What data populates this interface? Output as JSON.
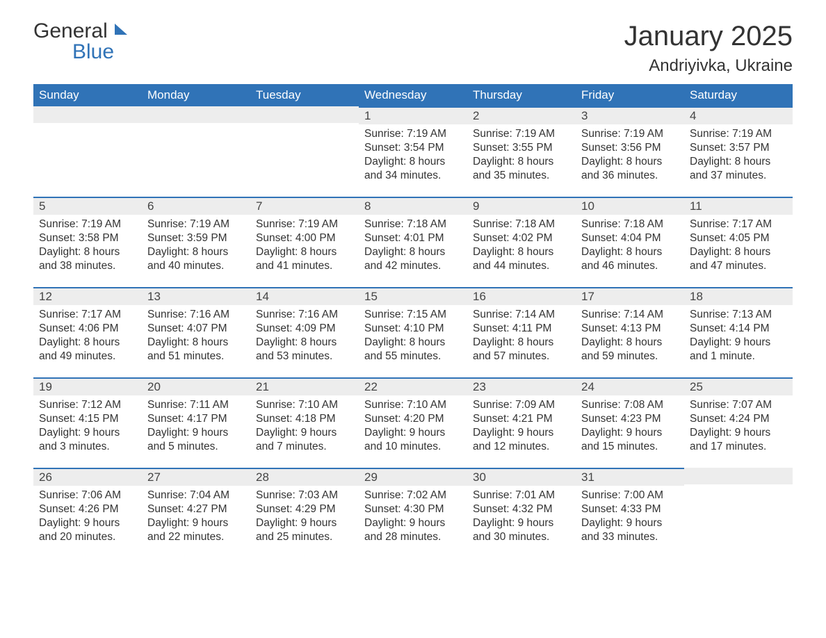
{
  "logo": {
    "word1": "General",
    "word2": "Blue",
    "mark_color": "#3073b7",
    "text_color": "#333333"
  },
  "header": {
    "title": "January 2025",
    "location": "Andriyivka, Ukraine"
  },
  "calendar": {
    "header_bg": "#3073b7",
    "header_fg": "#ffffff",
    "daynum_bg": "#ededed",
    "daynum_border": "#3073b7",
    "text_color": "#333333",
    "weekdays": [
      "Sunday",
      "Monday",
      "Tuesday",
      "Wednesday",
      "Thursday",
      "Friday",
      "Saturday"
    ],
    "labels": {
      "sunrise": "Sunrise:",
      "sunset": "Sunset:",
      "daylight": "Daylight:"
    },
    "weeks": [
      [
        null,
        null,
        null,
        {
          "n": "1",
          "sunrise": "7:19 AM",
          "sunset": "3:54 PM",
          "daylight": "8 hours and 34 minutes."
        },
        {
          "n": "2",
          "sunrise": "7:19 AM",
          "sunset": "3:55 PM",
          "daylight": "8 hours and 35 minutes."
        },
        {
          "n": "3",
          "sunrise": "7:19 AM",
          "sunset": "3:56 PM",
          "daylight": "8 hours and 36 minutes."
        },
        {
          "n": "4",
          "sunrise": "7:19 AM",
          "sunset": "3:57 PM",
          "daylight": "8 hours and 37 minutes."
        }
      ],
      [
        {
          "n": "5",
          "sunrise": "7:19 AM",
          "sunset": "3:58 PM",
          "daylight": "8 hours and 38 minutes."
        },
        {
          "n": "6",
          "sunrise": "7:19 AM",
          "sunset": "3:59 PM",
          "daylight": "8 hours and 40 minutes."
        },
        {
          "n": "7",
          "sunrise": "7:19 AM",
          "sunset": "4:00 PM",
          "daylight": "8 hours and 41 minutes."
        },
        {
          "n": "8",
          "sunrise": "7:18 AM",
          "sunset": "4:01 PM",
          "daylight": "8 hours and 42 minutes."
        },
        {
          "n": "9",
          "sunrise": "7:18 AM",
          "sunset": "4:02 PM",
          "daylight": "8 hours and 44 minutes."
        },
        {
          "n": "10",
          "sunrise": "7:18 AM",
          "sunset": "4:04 PM",
          "daylight": "8 hours and 46 minutes."
        },
        {
          "n": "11",
          "sunrise": "7:17 AM",
          "sunset": "4:05 PM",
          "daylight": "8 hours and 47 minutes."
        }
      ],
      [
        {
          "n": "12",
          "sunrise": "7:17 AM",
          "sunset": "4:06 PM",
          "daylight": "8 hours and 49 minutes."
        },
        {
          "n": "13",
          "sunrise": "7:16 AM",
          "sunset": "4:07 PM",
          "daylight": "8 hours and 51 minutes."
        },
        {
          "n": "14",
          "sunrise": "7:16 AM",
          "sunset": "4:09 PM",
          "daylight": "8 hours and 53 minutes."
        },
        {
          "n": "15",
          "sunrise": "7:15 AM",
          "sunset": "4:10 PM",
          "daylight": "8 hours and 55 minutes."
        },
        {
          "n": "16",
          "sunrise": "7:14 AM",
          "sunset": "4:11 PM",
          "daylight": "8 hours and 57 minutes."
        },
        {
          "n": "17",
          "sunrise": "7:14 AM",
          "sunset": "4:13 PM",
          "daylight": "8 hours and 59 minutes."
        },
        {
          "n": "18",
          "sunrise": "7:13 AM",
          "sunset": "4:14 PM",
          "daylight": "9 hours and 1 minute."
        }
      ],
      [
        {
          "n": "19",
          "sunrise": "7:12 AM",
          "sunset": "4:15 PM",
          "daylight": "9 hours and 3 minutes."
        },
        {
          "n": "20",
          "sunrise": "7:11 AM",
          "sunset": "4:17 PM",
          "daylight": "9 hours and 5 minutes."
        },
        {
          "n": "21",
          "sunrise": "7:10 AM",
          "sunset": "4:18 PM",
          "daylight": "9 hours and 7 minutes."
        },
        {
          "n": "22",
          "sunrise": "7:10 AM",
          "sunset": "4:20 PM",
          "daylight": "9 hours and 10 minutes."
        },
        {
          "n": "23",
          "sunrise": "7:09 AM",
          "sunset": "4:21 PM",
          "daylight": "9 hours and 12 minutes."
        },
        {
          "n": "24",
          "sunrise": "7:08 AM",
          "sunset": "4:23 PM",
          "daylight": "9 hours and 15 minutes."
        },
        {
          "n": "25",
          "sunrise": "7:07 AM",
          "sunset": "4:24 PM",
          "daylight": "9 hours and 17 minutes."
        }
      ],
      [
        {
          "n": "26",
          "sunrise": "7:06 AM",
          "sunset": "4:26 PM",
          "daylight": "9 hours and 20 minutes."
        },
        {
          "n": "27",
          "sunrise": "7:04 AM",
          "sunset": "4:27 PM",
          "daylight": "9 hours and 22 minutes."
        },
        {
          "n": "28",
          "sunrise": "7:03 AM",
          "sunset": "4:29 PM",
          "daylight": "9 hours and 25 minutes."
        },
        {
          "n": "29",
          "sunrise": "7:02 AM",
          "sunset": "4:30 PM",
          "daylight": "9 hours and 28 minutes."
        },
        {
          "n": "30",
          "sunrise": "7:01 AM",
          "sunset": "4:32 PM",
          "daylight": "9 hours and 30 minutes."
        },
        {
          "n": "31",
          "sunrise": "7:00 AM",
          "sunset": "4:33 PM",
          "daylight": "9 hours and 33 minutes."
        },
        null
      ]
    ]
  }
}
